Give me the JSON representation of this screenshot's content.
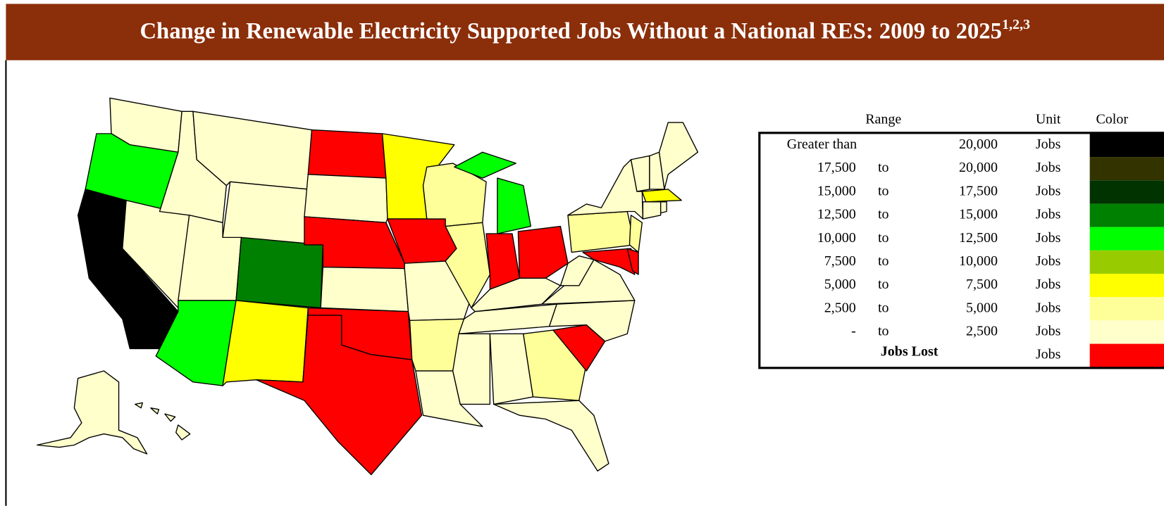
{
  "header": {
    "title": "Change in Renewable Electricity Supported Jobs Without a National RES: 2009 to 2025",
    "superscript": "1,2,3"
  },
  "legend": {
    "headers": {
      "range": "Range",
      "unit": "Unit",
      "color": "Color"
    },
    "rows": [
      {
        "from": "Greater than",
        "to": "20,000",
        "unit": "Jobs",
        "color": "#000000"
      },
      {
        "from": "17,500",
        "sep": "to",
        "to": "20,000",
        "unit": "Jobs",
        "color": "#333300"
      },
      {
        "from": "15,000",
        "sep": "to",
        "to": "17,500",
        "unit": "Jobs",
        "color": "#003300"
      },
      {
        "from": "12,500",
        "sep": "to",
        "to": "15,000",
        "unit": "Jobs",
        "color": "#008000"
      },
      {
        "from": "10,000",
        "sep": "to",
        "to": "12,500",
        "unit": "Jobs",
        "color": "#00ff00"
      },
      {
        "from": "7,500",
        "sep": "to",
        "to": "10,000",
        "unit": "Jobs",
        "color": "#99cc00"
      },
      {
        "from": "5,000",
        "sep": "to",
        "to": "7,500",
        "unit": "Jobs",
        "color": "#ffff00"
      },
      {
        "from": "2,500",
        "sep": "to",
        "to": "5,000",
        "unit": "Jobs",
        "color": "#ffff99"
      },
      {
        "from": "-",
        "sep": "to",
        "to": "2,500",
        "unit": "Jobs",
        "color": "#ffffcc"
      },
      {
        "label": "Jobs Lost",
        "unit": "Jobs",
        "color": "#ff0000"
      }
    ]
  }
}
